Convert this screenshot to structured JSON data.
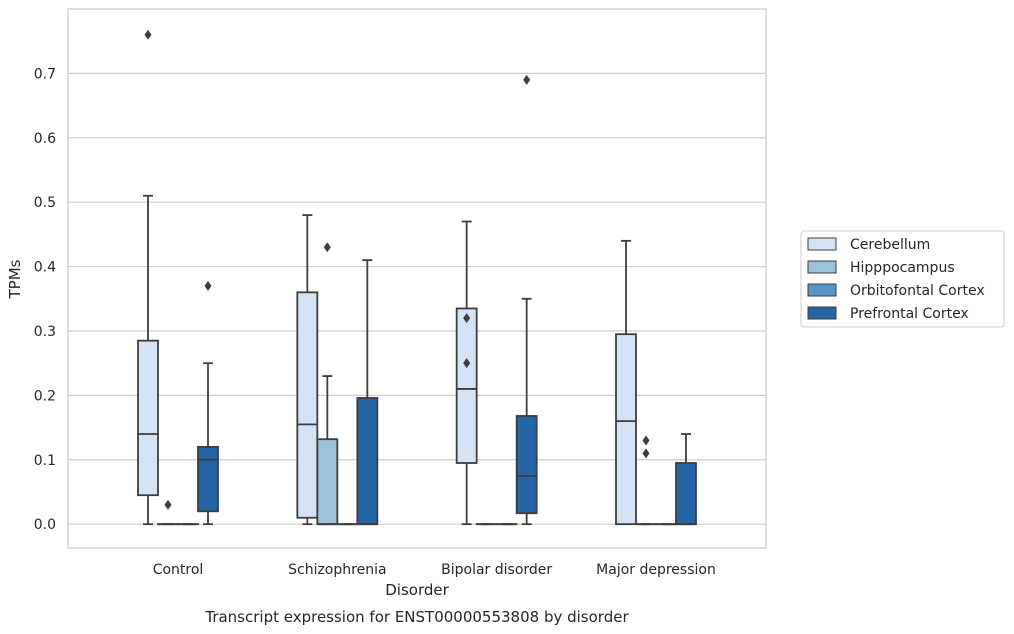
{
  "chart_data": {
    "type": "box",
    "title": "Transcript expression for ENST00000553808 by disorder",
    "xlabel": "Disorder",
    "ylabel": "TPMs",
    "ylim": [
      -0.037,
      0.8
    ],
    "yticks": [
      "0.0",
      "0.1",
      "0.2",
      "0.3",
      "0.4",
      "0.5",
      "0.6",
      "0.7"
    ],
    "grid": "horizontal",
    "legend_position": "right",
    "categories": [
      "Control",
      "Schizophrenia",
      "Bipolar disorder",
      "Major depression"
    ],
    "series": [
      {
        "name": "Cerebellum",
        "color": "#d4e3f3",
        "boxes": [
          {
            "whislo": 0.0,
            "q1": 0.045,
            "med": 0.14,
            "q3": 0.285,
            "whishi": 0.51,
            "fliers": [
              0.76
            ]
          },
          {
            "whislo": 0.0,
            "q1": 0.01,
            "med": 0.155,
            "q3": 0.36,
            "whishi": 0.48,
            "fliers": []
          },
          {
            "whislo": 0.0,
            "q1": 0.095,
            "med": 0.21,
            "q3": 0.335,
            "whishi": 0.47,
            "fliers": [
              0.32,
              0.25
            ]
          },
          {
            "whislo": 0.0,
            "q1": 0.0,
            "med": 0.16,
            "q3": 0.295,
            "whishi": 0.44,
            "fliers": []
          }
        ]
      },
      {
        "name": "Hipppocampus",
        "color": "#9ac2db",
        "boxes": [
          {
            "whislo": 0.0,
            "q1": 0.0,
            "med": 0.0,
            "q3": 0.0,
            "whishi": 0.0,
            "fliers": [
              0.03
            ]
          },
          {
            "whislo": 0.0,
            "q1": 0.0,
            "med": 0.0,
            "q3": 0.132,
            "whishi": 0.23,
            "fliers": [
              0.43
            ]
          },
          {
            "whislo": 0.0,
            "q1": 0.0,
            "med": 0.0,
            "q3": 0.0,
            "whishi": 0.0,
            "fliers": []
          },
          {
            "whislo": 0.0,
            "q1": 0.0,
            "med": 0.0,
            "q3": 0.0,
            "whishi": 0.0,
            "fliers": [
              0.13,
              0.11
            ]
          }
        ]
      },
      {
        "name": "Orbitofontal Cortex",
        "color": "#5696c6",
        "boxes": [
          {
            "whislo": 0.0,
            "q1": 0.0,
            "med": 0.0,
            "q3": 0.0,
            "whishi": 0.0,
            "fliers": []
          },
          {
            "whislo": 0.0,
            "q1": 0.0,
            "med": 0.0,
            "q3": 0.0,
            "whishi": 0.0,
            "fliers": []
          },
          {
            "whislo": 0.0,
            "q1": 0.0,
            "med": 0.0,
            "q3": 0.0,
            "whishi": 0.0,
            "fliers": []
          },
          {
            "whislo": 0.0,
            "q1": 0.0,
            "med": 0.0,
            "q3": 0.0,
            "whishi": 0.0,
            "fliers": []
          }
        ]
      },
      {
        "name": "Prefrontal Cortex",
        "color": "#2565a5",
        "boxes": [
          {
            "whislo": 0.0,
            "q1": 0.02,
            "med": 0.1,
            "q3": 0.12,
            "whishi": 0.25,
            "fliers": [
              0.37
            ]
          },
          {
            "whislo": 0.0,
            "q1": 0.0,
            "med": 0.0,
            "q3": 0.196,
            "whishi": 0.41,
            "fliers": []
          },
          {
            "whislo": 0.0,
            "q1": 0.017,
            "med": 0.075,
            "q3": 0.168,
            "whishi": 0.35,
            "fliers": [
              0.69
            ]
          },
          {
            "whislo": 0.0,
            "q1": 0.0,
            "med": 0.0,
            "q3": 0.095,
            "whishi": 0.14,
            "fliers": []
          }
        ]
      }
    ]
  }
}
